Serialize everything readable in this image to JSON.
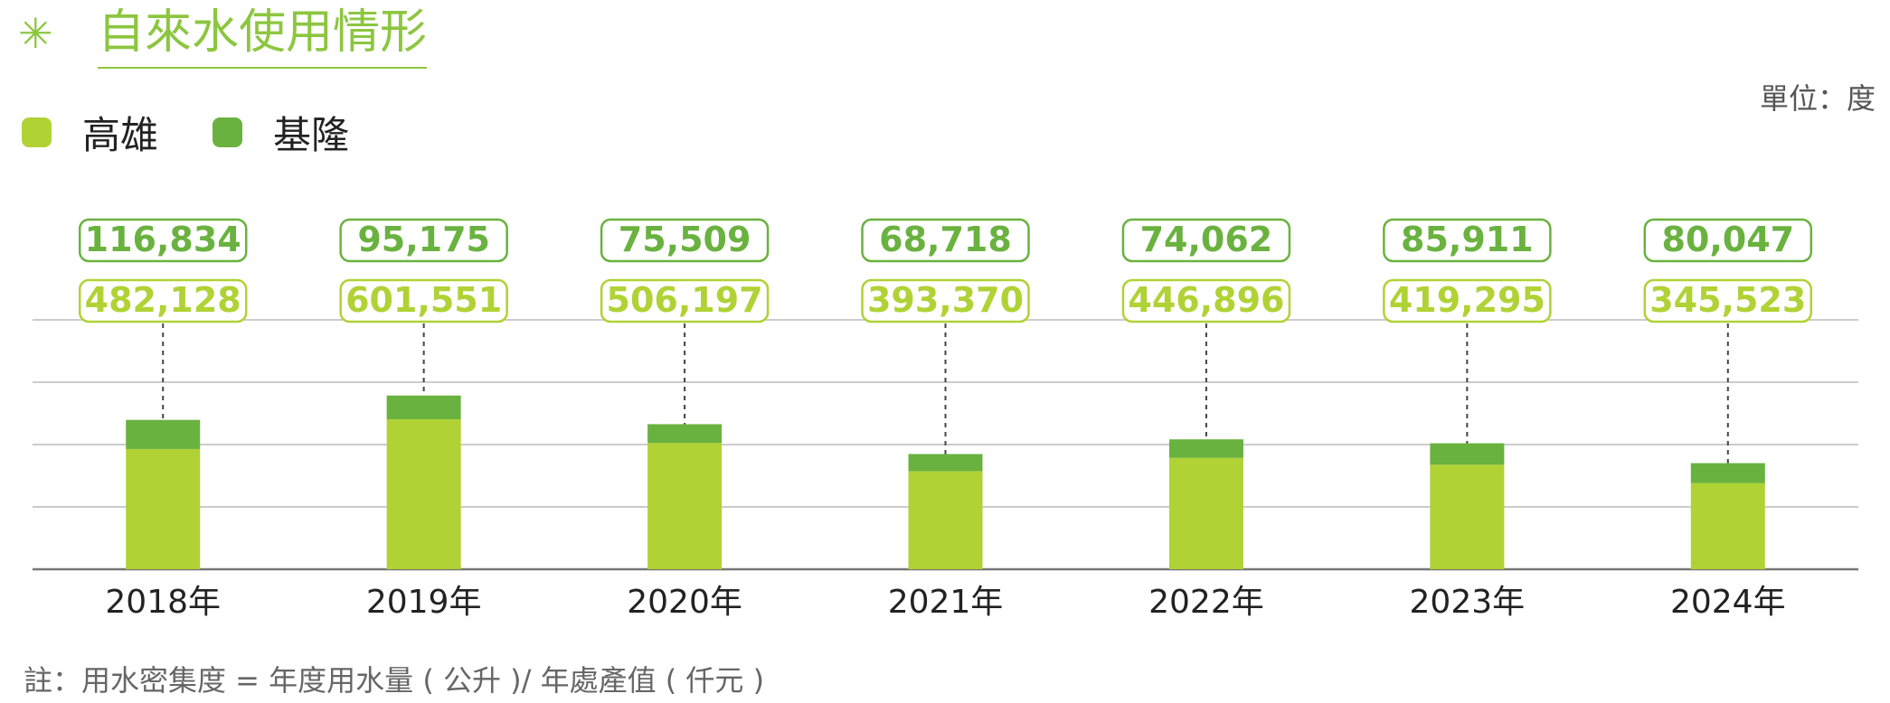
{
  "header": {
    "title_icon": "asterisk-icon",
    "title_icon_glyph": "✳",
    "title": "自來水使用情形",
    "unit": "單位：度"
  },
  "legend": [
    {
      "name": "高雄",
      "color": "#b0d235"
    },
    {
      "name": "基隆",
      "color": "#6ab23f"
    }
  ],
  "footnote": "註：用水密集度 = 年度用水量 ( 公升 )/ 年處產值 ( 仟元 )",
  "colors": {
    "accent": "#8cc63f",
    "kaohsiung": "#b0d235",
    "keelung": "#6ab23f",
    "grid": "#bbbbbb",
    "axis": "#777777"
  },
  "chart_data": {
    "type": "bar",
    "stacked": true,
    "categories": [
      "2018年",
      "2019年",
      "2020年",
      "2021年",
      "2022年",
      "2023年",
      "2024年"
    ],
    "series": [
      {
        "name": "高雄",
        "values": [
          482128,
          601551,
          506197,
          393370,
          446896,
          419295,
          345523
        ],
        "label_values": [
          "482,128",
          "601,551",
          "506,197",
          "393,370",
          "446,896",
          "419,295",
          "345,523"
        ]
      },
      {
        "name": "基隆",
        "values": [
          116834,
          95175,
          75509,
          68718,
          74062,
          85911,
          80047
        ],
        "label_values": [
          "116,834",
          "95,175",
          "75,509",
          "68,718",
          "74,062",
          "85,911",
          "80,047"
        ]
      }
    ],
    "ylim": [
      0,
      1000000
    ],
    "grid": true,
    "legend_position": "top-left"
  }
}
